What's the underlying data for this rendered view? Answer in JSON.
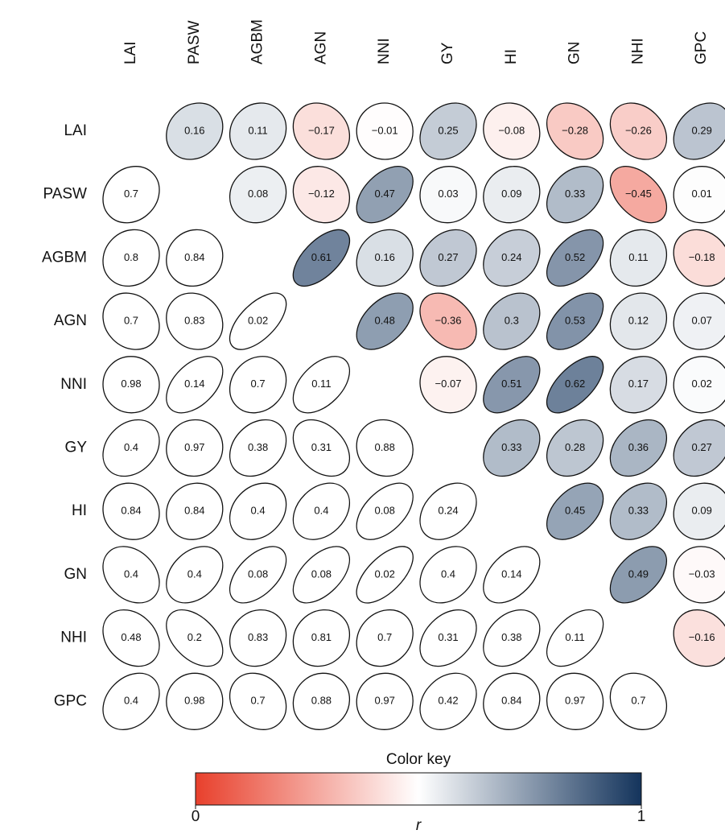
{
  "chart_data": {
    "type": "corrplot",
    "variables": [
      "LAI",
      "PASW",
      "AGBM",
      "AGN",
      "NNI",
      "GY",
      "HI",
      "GN",
      "NHI",
      "GPC"
    ],
    "r": [
      [
        null,
        0.16,
        0.11,
        -0.17,
        -0.01,
        0.25,
        -0.08,
        -0.28,
        -0.26,
        0.29
      ],
      [
        null,
        null,
        0.08,
        -0.12,
        0.47,
        0.03,
        0.09,
        0.33,
        -0.45,
        0.01
      ],
      [
        null,
        null,
        null,
        0.61,
        0.16,
        0.27,
        0.24,
        0.52,
        0.11,
        -0.18
      ],
      [
        null,
        null,
        null,
        null,
        0.48,
        -0.36,
        0.3,
        0.53,
        0.12,
        0.07
      ],
      [
        null,
        null,
        null,
        null,
        null,
        -0.07,
        0.51,
        0.62,
        0.17,
        0.02
      ],
      [
        null,
        null,
        null,
        null,
        null,
        null,
        0.33,
        0.28,
        0.36,
        0.27
      ],
      [
        null,
        null,
        null,
        null,
        null,
        null,
        null,
        0.45,
        0.33,
        0.09
      ],
      [
        null,
        null,
        null,
        null,
        null,
        null,
        null,
        null,
        0.49,
        -0.03
      ],
      [
        null,
        null,
        null,
        null,
        null,
        null,
        null,
        null,
        null,
        -0.16
      ],
      [
        null,
        null,
        null,
        null,
        null,
        null,
        null,
        null,
        null,
        null
      ]
    ],
    "r_labels": [
      [
        null,
        "0.16",
        "0.11",
        "−0.17",
        "−0.01",
        "0.25",
        "−0.08",
        "−0.28",
        "−0.26",
        "0.29"
      ],
      [
        null,
        null,
        "0.08",
        "−0.12",
        "0.47",
        "0.03",
        "0.09",
        "0.33",
        "−0.45",
        "0.01"
      ],
      [
        null,
        null,
        null,
        "0.61",
        "0.16",
        "0.27",
        "0.24",
        "0.52",
        "0.11",
        "−0.18"
      ],
      [
        null,
        null,
        null,
        null,
        "0.48",
        "−0.36",
        "0.3",
        "0.53",
        "0.12",
        "0.07"
      ],
      [
        null,
        null,
        null,
        null,
        null,
        "−0.07",
        "0.51",
        "0.62",
        "0.17",
        "0.02"
      ],
      [
        null,
        null,
        null,
        null,
        null,
        null,
        "0.33",
        "0.28",
        "0.36",
        "0.27"
      ],
      [
        null,
        null,
        null,
        null,
        null,
        null,
        null,
        "0.45",
        "0.33",
        "0.09"
      ],
      [
        null,
        null,
        null,
        null,
        null,
        null,
        null,
        null,
        "0.49",
        "−0.03"
      ],
      [
        null,
        null,
        null,
        null,
        null,
        null,
        null,
        null,
        null,
        "−0.16"
      ],
      [
        null,
        null,
        null,
        null,
        null,
        null,
        null,
        null,
        null,
        null
      ]
    ],
    "p": [
      [
        null,
        null,
        null,
        null,
        null,
        null,
        null,
        null,
        null,
        null
      ],
      [
        0.7,
        null,
        null,
        null,
        null,
        null,
        null,
        null,
        null,
        null
      ],
      [
        0.8,
        0.84,
        null,
        null,
        null,
        null,
        null,
        null,
        null,
        null
      ],
      [
        0.7,
        0.83,
        0.02,
        null,
        null,
        null,
        null,
        null,
        null,
        null
      ],
      [
        0.98,
        0.14,
        0.7,
        0.11,
        null,
        null,
        null,
        null,
        null,
        null
      ],
      [
        0.4,
        0.97,
        0.38,
        0.31,
        0.88,
        null,
        null,
        null,
        null,
        null
      ],
      [
        0.84,
        0.84,
        0.4,
        0.4,
        0.08,
        0.24,
        null,
        null,
        null,
        null
      ],
      [
        0.4,
        0.4,
        0.08,
        0.08,
        0.02,
        0.4,
        0.14,
        null,
        null,
        null
      ],
      [
        0.48,
        0.2,
        0.83,
        0.81,
        0.7,
        0.31,
        0.38,
        0.11,
        null,
        null
      ],
      [
        0.4,
        0.98,
        0.7,
        0.88,
        0.97,
        0.42,
        0.84,
        0.97,
        0.7,
        null
      ]
    ],
    "colorscale": [
      "#e8402c",
      "#ffffff",
      "#14345c"
    ],
    "color_key": {
      "title": "Color key",
      "label": "r",
      "lim": [
        0,
        1
      ],
      "ticks": [
        0,
        1
      ]
    }
  }
}
